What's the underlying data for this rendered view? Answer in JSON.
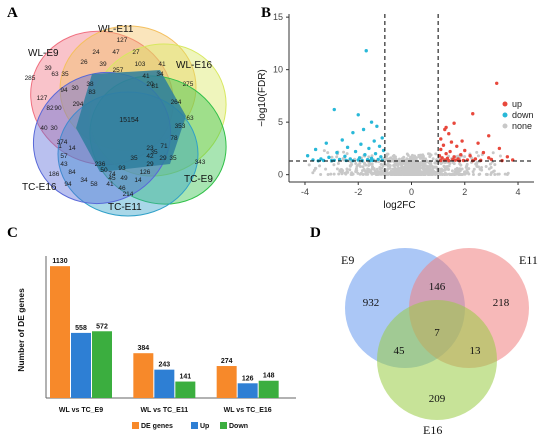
{
  "panels": {
    "a": {
      "label": "A"
    },
    "b": {
      "label": "B"
    },
    "c": {
      "label": "C"
    },
    "d": {
      "label": "D"
    }
  },
  "chart_data": [
    {
      "type": "venn",
      "panel": "A",
      "sets": [
        "WL-E9",
        "WL-E11",
        "WL-E16",
        "TC-E9",
        "TC-E11",
        "TC-E16"
      ],
      "colors": {
        "WL-E9": "#f07080",
        "WL-E11": "#f4c060",
        "WL-E16": "#d8e860",
        "TC-E9": "#30c048",
        "TC-E11": "#30a0c8",
        "TC-E16": "#5868d8",
        "core": "#2e7e9e"
      },
      "region_values": [
        "127",
        "24",
        "47",
        "27",
        "285",
        "39",
        "26",
        "39",
        "257",
        "41",
        "34",
        "63",
        "35",
        "30",
        "38",
        "41",
        "103",
        "81",
        "275",
        "127",
        "94",
        "294",
        "20",
        "264",
        "83",
        "63",
        "82",
        "90",
        "40",
        "30",
        "15154",
        "353",
        "78",
        "71",
        "29",
        "35",
        "374",
        "74",
        "186",
        "57",
        "43",
        "1",
        "14",
        "42",
        "29",
        "343",
        "23",
        "84",
        "50",
        "236",
        "35",
        "126",
        "14",
        "34",
        "41",
        "46",
        "49",
        "45",
        "58",
        "94",
        "93",
        "35",
        "214"
      ]
    },
    {
      "type": "scatter",
      "panel": "B",
      "xlabel": "log2FC",
      "ylabel": "−log10(FDR)",
      "xlim": [
        -4.6,
        4.6
      ],
      "ylim": [
        -0.7,
        15.3
      ],
      "xticks": [
        "-4",
        "-2",
        "0",
        "2",
        "4"
      ],
      "yticks": [
        "0",
        "5",
        "10",
        "15"
      ],
      "threshold_x": [
        -1,
        1
      ],
      "threshold_y": 1.3,
      "legend": [
        "up",
        "down",
        "none"
      ],
      "colors": {
        "up": "#e8483c",
        "down": "#28b8d8",
        "none": "#c8c8c8"
      },
      "up_points": [
        [
          3.2,
          8.7
        ],
        [
          2.3,
          5.8
        ],
        [
          1.6,
          4.9
        ],
        [
          1.3,
          4.5
        ],
        [
          1.25,
          4.3
        ],
        [
          1.4,
          3.9
        ],
        [
          2.9,
          3.7
        ],
        [
          1.1,
          3.4
        ],
        [
          1.9,
          3.2
        ],
        [
          1.5,
          3.1
        ],
        [
          2.5,
          3.0
        ],
        [
          1.2,
          2.8
        ],
        [
          1.7,
          2.7
        ],
        [
          3.3,
          2.5
        ],
        [
          1.1,
          2.4
        ],
        [
          2.0,
          2.3
        ],
        [
          1.45,
          2.2
        ],
        [
          2.7,
          2.1
        ],
        [
          1.3,
          2.0
        ],
        [
          1.85,
          1.9
        ],
        [
          2.2,
          1.8
        ],
        [
          1.05,
          1.8
        ],
        [
          3.6,
          1.7
        ],
        [
          1.6,
          1.7
        ],
        [
          2.9,
          1.6
        ],
        [
          1.15,
          1.6
        ],
        [
          1.35,
          1.55
        ],
        [
          2.4,
          1.5
        ],
        [
          1.75,
          1.5
        ],
        [
          3.0,
          1.45
        ],
        [
          1.55,
          1.45
        ],
        [
          2.1,
          1.4
        ],
        [
          1.25,
          1.4
        ],
        [
          3.8,
          1.4
        ],
        [
          1.65,
          1.38
        ],
        [
          2.6,
          1.36
        ],
        [
          1.95,
          1.35
        ],
        [
          1.1,
          1.35
        ],
        [
          3.4,
          1.34
        ],
        [
          2.3,
          1.33
        ],
        [
          1.4,
          1.33
        ],
        [
          1.8,
          1.32
        ]
      ],
      "down_points": [
        [
          -1.7,
          11.8
        ],
        [
          -2.9,
          6.2
        ],
        [
          -2.0,
          5.7
        ],
        [
          -1.5,
          5.0
        ],
        [
          -1.3,
          4.6
        ],
        [
          -1.8,
          4.3
        ],
        [
          -2.2,
          4.0
        ],
        [
          -1.1,
          3.5
        ],
        [
          -2.6,
          3.3
        ],
        [
          -1.4,
          3.2
        ],
        [
          -3.2,
          3.0
        ],
        [
          -1.9,
          2.9
        ],
        [
          -1.2,
          2.7
        ],
        [
          -2.4,
          2.6
        ],
        [
          -1.6,
          2.5
        ],
        [
          -3.6,
          2.4
        ],
        [
          -1.05,
          2.3
        ],
        [
          -2.1,
          2.2
        ],
        [
          -2.8,
          2.1
        ],
        [
          -1.35,
          2.0
        ],
        [
          -1.75,
          1.9
        ],
        [
          -3.9,
          1.8
        ],
        [
          -2.5,
          1.75
        ],
        [
          -1.15,
          1.7
        ],
        [
          -3.1,
          1.65
        ],
        [
          -1.95,
          1.6
        ],
        [
          -1.5,
          1.55
        ],
        [
          -2.3,
          1.5
        ],
        [
          -3.4,
          1.5
        ],
        [
          -1.25,
          1.45
        ],
        [
          -2.7,
          1.45
        ],
        [
          -1.65,
          1.42
        ],
        [
          -3.7,
          1.4
        ],
        [
          -2.0,
          1.4
        ],
        [
          -1.1,
          1.38
        ],
        [
          -2.9,
          1.37
        ],
        [
          -1.45,
          1.36
        ],
        [
          -3.3,
          1.35
        ],
        [
          -2.45,
          1.35
        ],
        [
          -1.85,
          1.34
        ],
        [
          -3.0,
          1.34
        ],
        [
          -2.2,
          1.33
        ],
        [
          -1.55,
          1.33
        ],
        [
          -3.5,
          1.32
        ]
      ]
    },
    {
      "type": "bar",
      "panel": "C",
      "categories": [
        "WL vs TC_E9",
        "WL vs TC_E11",
        "WL vs TC_E16"
      ],
      "ylabel": "Number  of  DE genes",
      "ylim": [
        0,
        1200
      ],
      "series": [
        {
          "name": "DE genes",
          "color": "#f7892a",
          "values": [
            1130,
            384,
            274
          ]
        },
        {
          "name": "Up",
          "color": "#2e7fd4",
          "values": [
            558,
            243,
            126
          ]
        },
        {
          "name": "Down",
          "color": "#3bae3f",
          "values": [
            572,
            141,
            148
          ]
        }
      ]
    },
    {
      "type": "venn",
      "panel": "D",
      "sets": [
        "E9",
        "E11",
        "E16"
      ],
      "colors": {
        "E9": "#6699ee",
        "E11": "#f08080",
        "E16": "#99cc44"
      },
      "regions": {
        "E9_only": 932,
        "E11_only": 218,
        "E16_only": 209,
        "E9_E11": 146,
        "E9_E16": 45,
        "E11_E16": 13,
        "E9_E11_E16": 7
      }
    }
  ]
}
